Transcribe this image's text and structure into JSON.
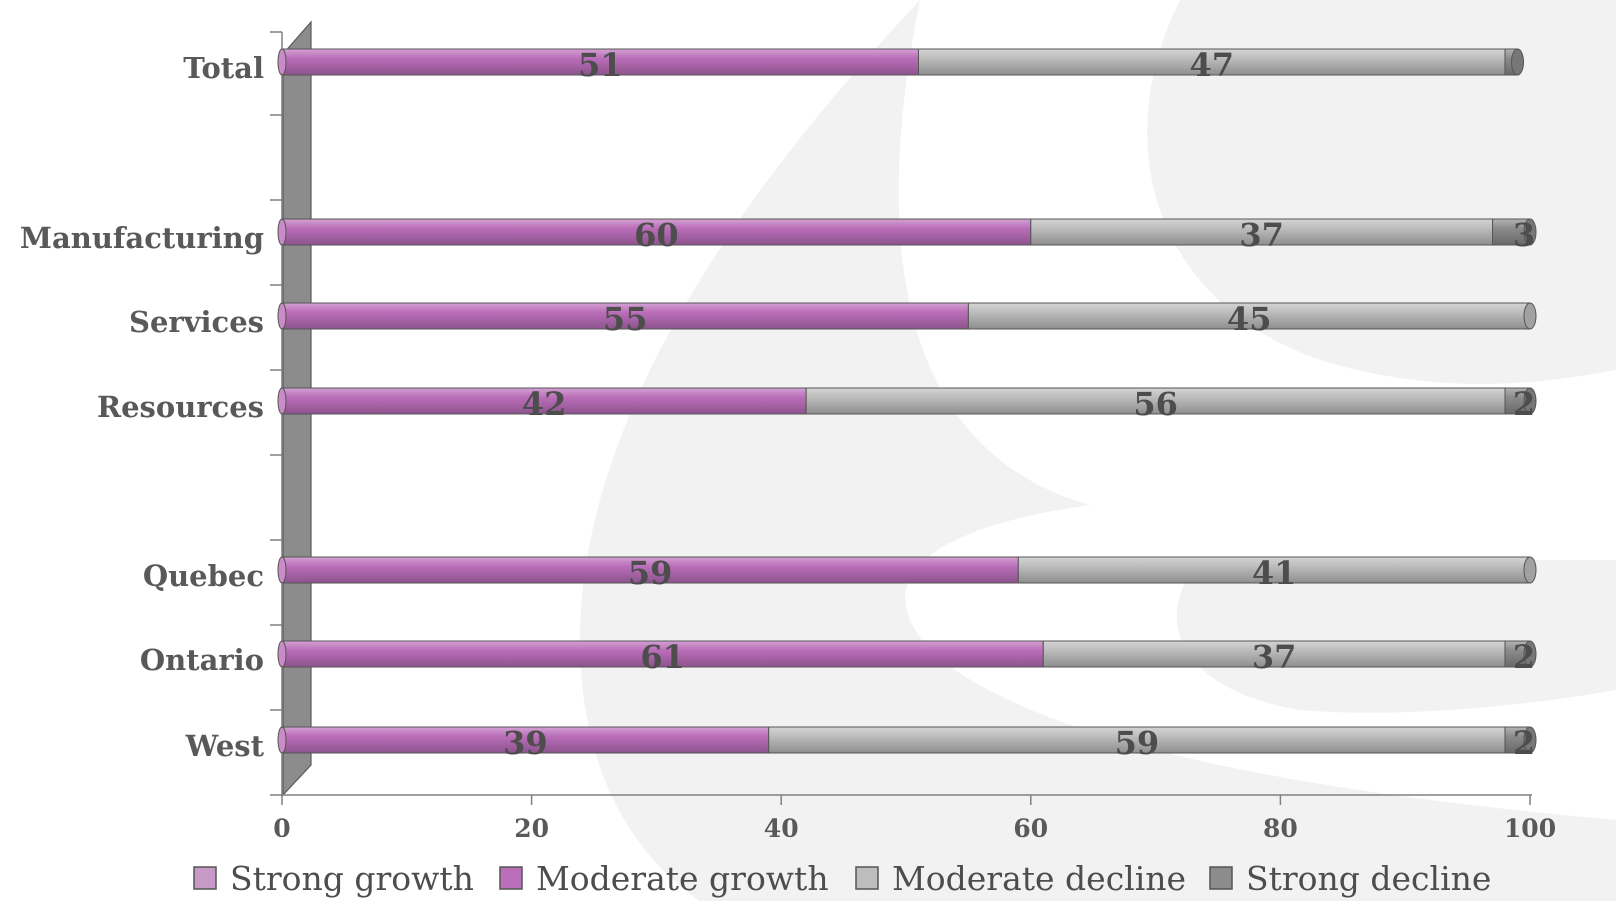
{
  "chart_data": {
    "type": "bar",
    "orientation": "horizontal",
    "stacked": true,
    "categories": [
      "Total",
      "Manufacturing",
      "Services",
      "Resources",
      "Quebec",
      "Ontario",
      "West"
    ],
    "category_groups": [
      [
        "Total"
      ],
      [
        "Manufacturing",
        "Services",
        "Resources"
      ],
      [
        "Quebec",
        "Ontario",
        "West"
      ]
    ],
    "series": [
      {
        "name": "Strong growth",
        "color": "#c89ac8",
        "values": [
          0,
          0,
          0,
          0,
          0,
          0,
          0
        ],
        "labels": [
          "",
          "",
          "",
          "",
          "",
          "",
          ""
        ]
      },
      {
        "name": "Moderate growth",
        "color": "#bb6fba",
        "values": [
          51,
          60,
          55,
          42,
          59,
          61,
          39
        ],
        "labels": [
          "51",
          "60",
          "55",
          "42",
          "59",
          "61",
          "39"
        ]
      },
      {
        "name": "Moderate decline",
        "color": "#bdbdbd",
        "values": [
          47,
          37,
          45,
          56,
          41,
          37,
          59
        ],
        "labels": [
          "47",
          "37",
          "45",
          "56",
          "41",
          "37",
          "59"
        ]
      },
      {
        "name": "Strong decline",
        "color": "#8c8c8c",
        "values": [
          1,
          3,
          0,
          2,
          0,
          2,
          2
        ],
        "labels": [
          "",
          "3",
          "",
          "2",
          "",
          "2",
          "2"
        ]
      }
    ],
    "x_ticks": [
      "0",
      "20",
      "40",
      "60",
      "80",
      "100"
    ],
    "xlim": [
      0,
      100
    ],
    "title": "",
    "xlabel": "",
    "ylabel": "",
    "grid": false,
    "legend_position": "bottom"
  }
}
